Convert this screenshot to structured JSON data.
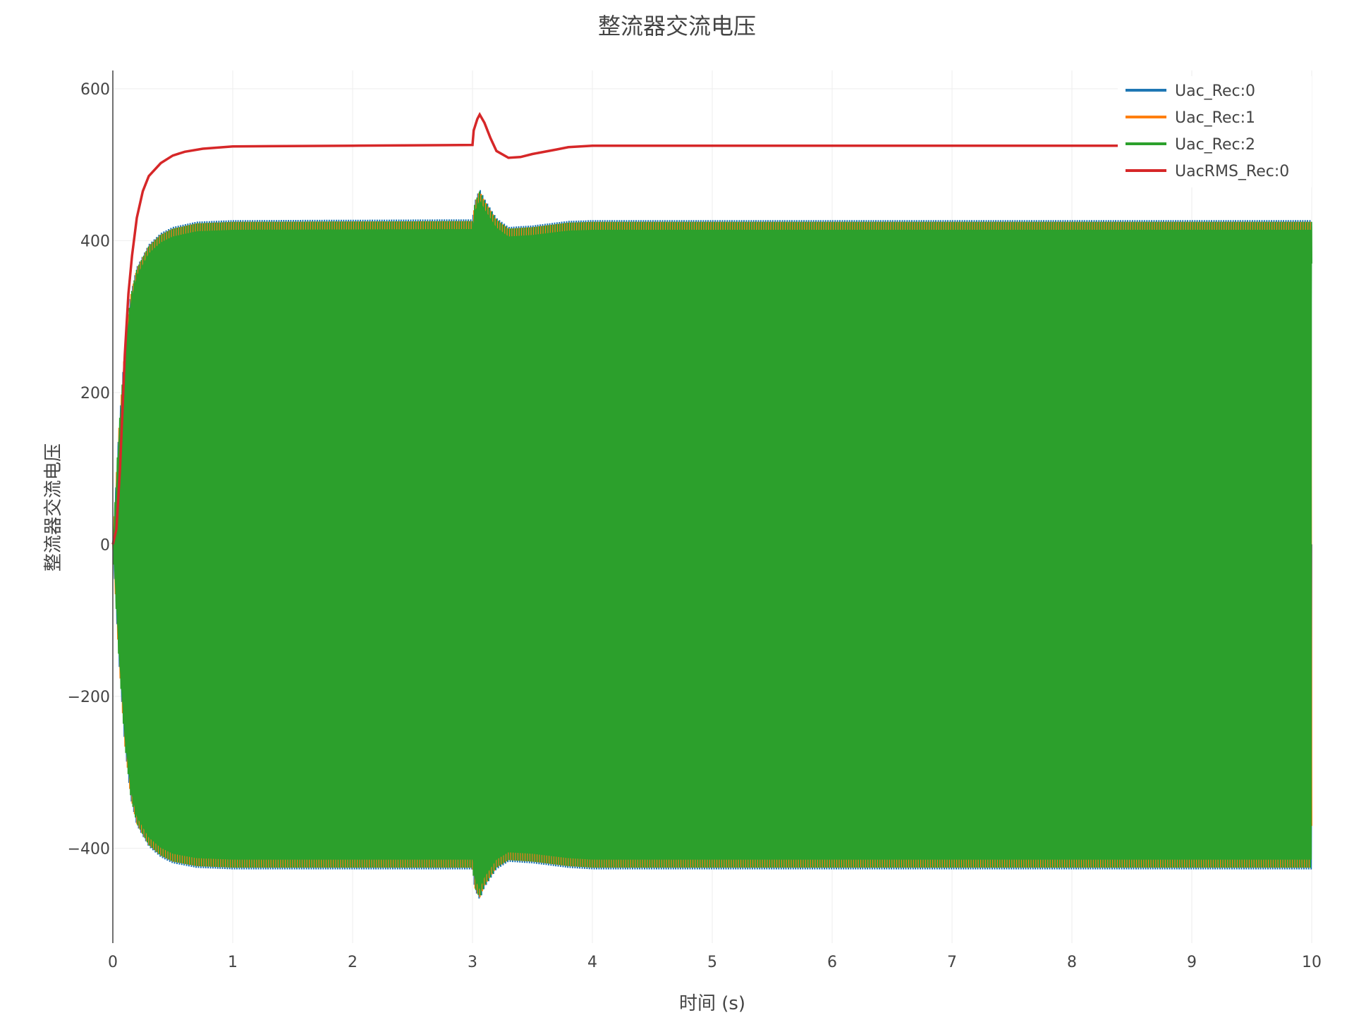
{
  "chart_data": {
    "type": "line",
    "title": "整流器交流电压",
    "xlabel": "时间 (s)",
    "ylabel": "整流器交流电压",
    "xlim": [
      0,
      10
    ],
    "ylim": [
      -525,
      624
    ],
    "xticks": [
      0,
      1,
      2,
      3,
      4,
      5,
      6,
      7,
      8,
      9,
      10
    ],
    "yticks": [
      -400,
      -200,
      0,
      200,
      400,
      600
    ],
    "ytick_labels": [
      "−400",
      "−200",
      "0",
      "200",
      "400",
      "600"
    ],
    "grid": true,
    "legend_position": "top-right",
    "series": [
      {
        "name": "Uac_Rec:0",
        "color": "#1f77b4",
        "kind": "sinusoid-envelope"
      },
      {
        "name": "Uac_Rec:1",
        "color": "#ff7f0e",
        "kind": "sinusoid-envelope"
      },
      {
        "name": "Uac_Rec:2",
        "color": "#2ca02c",
        "kind": "sinusoid-envelope"
      },
      {
        "name": "UacRMS_Rec:0",
        "color": "#d62728",
        "kind": "line"
      }
    ],
    "envelope": {
      "x": [
        0,
        0.05,
        0.1,
        0.15,
        0.2,
        0.3,
        0.4,
        0.5,
        0.7,
        1.0,
        3.0,
        3.02,
        3.06,
        3.1,
        3.2,
        3.3,
        3.5,
        3.8,
        4.0,
        10.0
      ],
      "upper": [
        0,
        150,
        260,
        330,
        365,
        395,
        410,
        418,
        425,
        427,
        428,
        452,
        468,
        455,
        430,
        418,
        420,
        426,
        427,
        427
      ],
      "lower": [
        0,
        -150,
        -265,
        -335,
        -370,
        -398,
        -412,
        -420,
        -426,
        -428,
        -428,
        -455,
        -468,
        -452,
        -428,
        -418,
        -420,
        -426,
        -428,
        -428
      ]
    },
    "rms": {
      "x": [
        0,
        0.03,
        0.06,
        0.1,
        0.13,
        0.16,
        0.2,
        0.25,
        0.3,
        0.4,
        0.5,
        0.6,
        0.75,
        1.0,
        2.0,
        3.0,
        3.01,
        3.04,
        3.06,
        3.1,
        3.15,
        3.2,
        3.3,
        3.4,
        3.5,
        3.7,
        3.8,
        4.0,
        8.4
      ],
      "y": [
        0,
        20,
        100,
        250,
        330,
        380,
        430,
        465,
        485,
        502,
        512,
        517,
        521,
        524,
        525,
        526,
        545,
        560,
        566,
        555,
        535,
        518,
        509,
        510,
        514,
        520,
        523,
        525,
        525
      ]
    }
  }
}
